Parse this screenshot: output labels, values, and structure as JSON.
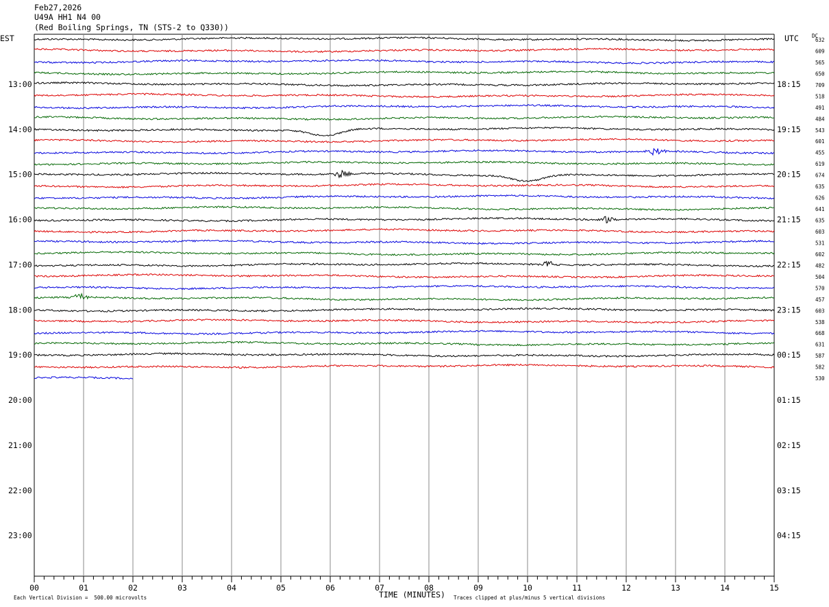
{
  "header": {
    "date": "Feb27,2026",
    "channel": "U49A HH1 N4 00",
    "location": "(Red Boiling Springs, TN (STS-2 to Q330))"
  },
  "axis": {
    "left_title": "EST",
    "right_title": "UTC",
    "dc_title": "DC",
    "x_title": "TIME (MINUTES)"
  },
  "footer": {
    "scale_note": "Each Vertical Division =  500.00 microvolts",
    "clip_note": "Traces clipped at plus/minus 5 vertical divisions"
  },
  "chart_data": {
    "type": "line",
    "x_ticks": [
      "00",
      "01",
      "02",
      "03",
      "04",
      "05",
      "06",
      "07",
      "08",
      "09",
      "10",
      "11",
      "12",
      "13",
      "14",
      "15"
    ],
    "xlim": [
      0,
      15
    ],
    "row_minutes": 15,
    "local_hour_labels": [
      "13:00",
      "14:00",
      "15:00",
      "16:00",
      "17:00",
      "18:00",
      "19:00",
      "20:00",
      "21:00",
      "22:00",
      "23:00"
    ],
    "utc_hour_labels": [
      "18:15",
      "19:15",
      "20:15",
      "21:15",
      "22:15",
      "23:15",
      "00:15",
      "01:15",
      "02:15",
      "03:15",
      "04:15"
    ],
    "dc_offsets": [
      "632",
      "609",
      "565",
      "650",
      "709",
      "518",
      "491",
      "484",
      "543",
      "601",
      "455",
      "619",
      "674",
      "635",
      "626",
      "641",
      "635",
      "603",
      "531",
      "602",
      "482",
      "504",
      "570",
      "457",
      "603",
      "538",
      "668",
      "631",
      "587",
      "582",
      "530"
    ],
    "trace_colors": [
      "#000000",
      "#dd0000",
      "#0000dd",
      "#006600"
    ],
    "last_trace_end_minute": 2.0,
    "events": [
      {
        "row": 12,
        "minute": 6.2,
        "kind": "burst"
      },
      {
        "row": 12,
        "minute": 10.0,
        "kind": "dip"
      },
      {
        "row": 10,
        "minute": 12.6,
        "kind": "burst"
      },
      {
        "row": 23,
        "minute": 0.9,
        "kind": "burst"
      },
      {
        "row": 16,
        "minute": 11.6,
        "kind": "burst"
      },
      {
        "row": 20,
        "minute": 10.4,
        "kind": "spike"
      },
      {
        "row": 8,
        "minute": 5.9,
        "kind": "dip"
      }
    ]
  }
}
